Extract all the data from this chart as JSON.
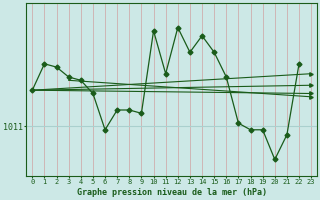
{
  "title": "Graphe pression niveau de la mer (hPa)",
  "bg_color": "#cce8e6",
  "grid_color": "#aad0ce",
  "line_color": "#1a5c1a",
  "marker_color": "#1a5c1a",
  "ylabel_text": "1011",
  "y_ref": 1011,
  "x_labels": [
    "0",
    "1",
    "2",
    "3",
    "4",
    "5",
    "6",
    "7",
    "8",
    "9",
    "10",
    "11",
    "12",
    "13",
    "14",
    "15",
    "16",
    "17",
    "18",
    "19",
    "20",
    "21",
    "22",
    "23"
  ],
  "series_main": [
    1013.2,
    1014.8,
    1014.6,
    1014.0,
    1013.8,
    1013.0,
    1010.8,
    1012.0,
    1012.0,
    1011.8,
    1016.8,
    1014.2,
    1017.0,
    1015.5,
    1016.5,
    1015.5,
    1014.0,
    1011.2,
    1010.8,
    1010.8,
    1009.0,
    1010.5,
    1014.8,
    null
  ],
  "series_flat1": {
    "x0": 0,
    "y0": 1013.2,
    "x1": 23,
    "y1": 1014.2
  },
  "series_flat2": {
    "x0": 0,
    "y0": 1013.2,
    "x1": 23,
    "y1": 1013.5
  },
  "series_flat3": {
    "x0": 0,
    "y0": 1013.2,
    "x1": 23,
    "y1": 1013.0
  },
  "series_flat4": {
    "x0": 3,
    "y0": 1013.8,
    "x1": 23,
    "y1": 1012.8
  },
  "xlim": [
    -0.5,
    23.5
  ],
  "ylim": [
    1008.0,
    1018.5
  ]
}
